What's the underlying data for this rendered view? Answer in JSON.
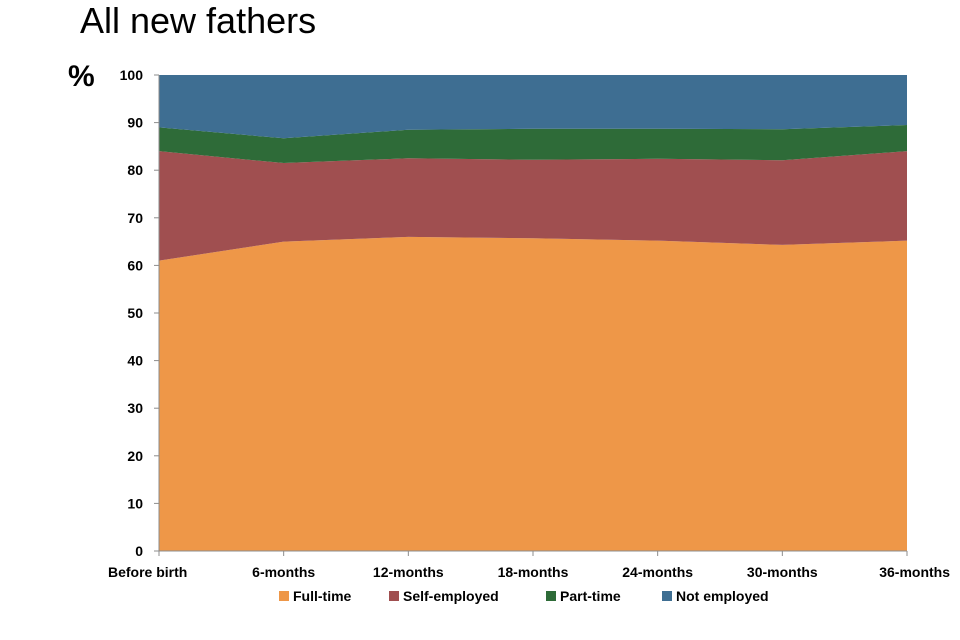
{
  "title": "All new fathers",
  "unit_label": "%",
  "chart_data": {
    "type": "area",
    "stacked": true,
    "categories": [
      "Before birth",
      "6-months",
      "12-months",
      "18-months",
      "24-months",
      "30-months",
      "36-months"
    ],
    "series": [
      {
        "name": "Full-time",
        "color": "#EE9748",
        "values": [
          61,
          65,
          66,
          65.7,
          65.2,
          64.3,
          65.2
        ]
      },
      {
        "name": "Self-employed",
        "color": "#A04F50",
        "values": [
          23,
          16.5,
          16.5,
          16.5,
          17.2,
          17.8,
          18.8
        ]
      },
      {
        "name": "Part-time",
        "color": "#2E6B38",
        "values": [
          5,
          5.2,
          6,
          6.5,
          6.3,
          6.5,
          5.5
        ]
      },
      {
        "name": "Not employed",
        "color": "#3E6E92",
        "values": [
          11,
          13.3,
          11.5,
          11.3,
          11.3,
          11.4,
          10.5
        ]
      }
    ],
    "yticks": [
      0,
      10,
      20,
      30,
      40,
      50,
      60,
      70,
      80,
      90,
      100
    ],
    "ylim": [
      0,
      100
    ],
    "legend_position": "bottom",
    "grid": false
  }
}
